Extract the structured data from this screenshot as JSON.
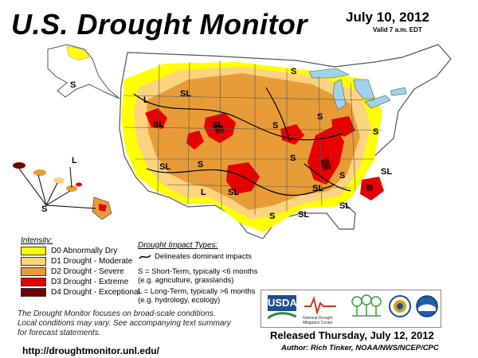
{
  "header": {
    "title": "U.S. Drought Monitor",
    "date": "July 10, 2012",
    "valid": "Valid 7 a.m. EDT"
  },
  "map": {
    "labels": {
      "S": "S",
      "L": "L",
      "SL": "SL"
    },
    "colors": {
      "land": "#ffffff",
      "water": "#9fd3ec",
      "border": "#555555"
    }
  },
  "legend": {
    "intensity_title": "Intensity:",
    "items": [
      {
        "label": "D0 Abnormally Dry",
        "color": "#ffff00"
      },
      {
        "label": "D1 Drought - Moderate",
        "color": "#fcd37f"
      },
      {
        "label": "D2 Drought - Severe",
        "color": "#e89c37"
      },
      {
        "label": "D3 Drought - Extreme",
        "color": "#e60000"
      },
      {
        "label": "D4 Drought - Exceptional",
        "color": "#730000"
      }
    ],
    "impact_title": "Drought Impact Types:",
    "impact_line": "Delineates dominant impacts",
    "short_term": "S = Short-Term, typically <6 months",
    "short_term_eg": "(e.g. agriculture, grasslands)",
    "long_term": "L = Long-Term, typically >6 months",
    "long_term_eg": "(e.g. hydrology, ecology)"
  },
  "footnote": {
    "line1": "The Drought Monitor focuses on broad-scale conditions.",
    "line2": "Local conditions may vary. See accompanying text summary",
    "line3": "for forecast statements."
  },
  "url": "http://droughtmonitor.unl.edu/",
  "logos": {
    "usda": "USDA",
    "ndmc": "National Drought Mitigation Center"
  },
  "release": {
    "released": "Released Thursday, July 12, 2012",
    "author": "Author: Rich Tinker, NOAA/NWS/NCEP/CPC"
  }
}
